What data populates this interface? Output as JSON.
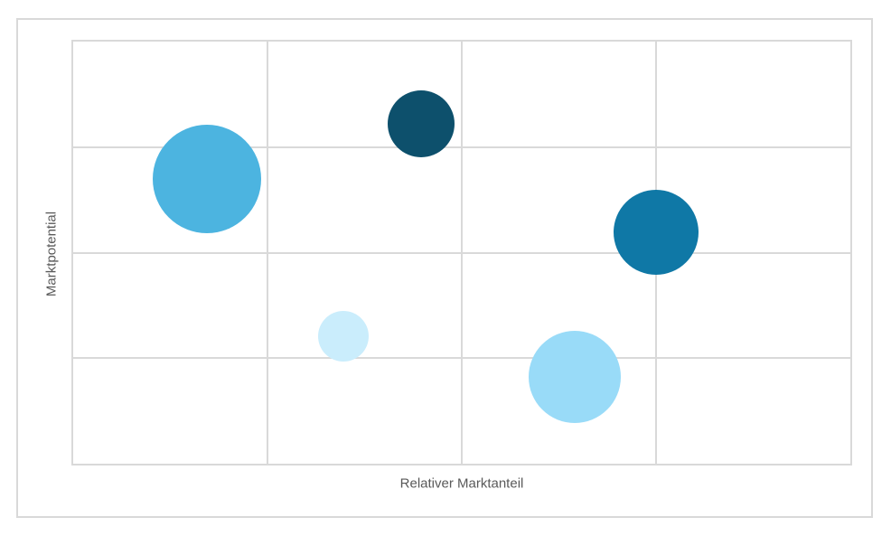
{
  "chart_data": {
    "type": "scatter",
    "variant": "bubble",
    "title": "",
    "xlabel": "Relativer Marktanteil",
    "ylabel": "Marktpotential",
    "xlim": [
      0,
      4
    ],
    "ylim": [
      0,
      4
    ],
    "x_divisions": 4,
    "y_divisions": 4,
    "grid": true,
    "legend_position": "none",
    "tick_labels_visible": false,
    "points": [
      {
        "label": "bubble-1",
        "x": 0.69,
        "y": 2.7,
        "radius_px": 60,
        "color": "#4CB4E0"
      },
      {
        "label": "bubble-2",
        "x": 1.79,
        "y": 3.22,
        "radius_px": 37,
        "color": "#0D506C"
      },
      {
        "label": "bubble-3",
        "x": 3.0,
        "y": 2.19,
        "radius_px": 47,
        "color": "#0F78A6"
      },
      {
        "label": "bubble-4",
        "x": 1.39,
        "y": 1.21,
        "radius_px": 28,
        "color": "#CAEDFC"
      },
      {
        "label": "bubble-5",
        "x": 2.58,
        "y": 0.82,
        "radius_px": 51,
        "color": "#99DBF8"
      }
    ]
  },
  "colors": {
    "gridline": "#D9D9D9",
    "card_border": "#D9D9D9",
    "plot_border": "#D9D9D9",
    "axis_label_text": "#595959",
    "background": "#FFFFFF"
  }
}
